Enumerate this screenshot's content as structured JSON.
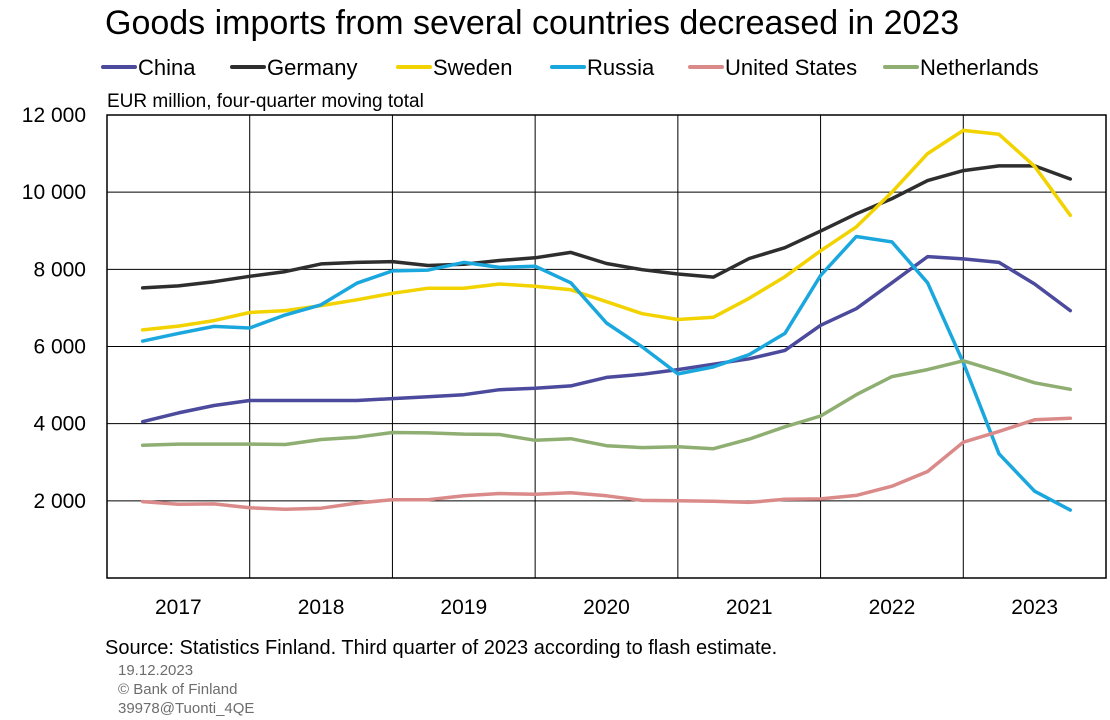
{
  "chart_data": {
    "type": "line",
    "title": "Goods imports from several countries decreased in 2023",
    "unit_label": "EUR million, four-quarter moving total",
    "legend_position": "top",
    "grid": true,
    "xlim": [
      2017,
      2024
    ],
    "ylim": [
      0,
      12000
    ],
    "x_ticks": [
      "2017",
      "2018",
      "2019",
      "2020",
      "2021",
      "2022",
      "2023"
    ],
    "y_ticks": [
      {
        "value": 2000,
        "label": "2 000"
      },
      {
        "value": 4000,
        "label": "4 000"
      },
      {
        "value": 6000,
        "label": "6 000"
      },
      {
        "value": 8000,
        "label": "8 000"
      },
      {
        "value": 10000,
        "label": "10 000"
      },
      {
        "value": 12000,
        "label": "12 000"
      }
    ],
    "x": [
      "2017Q1",
      "2017Q2",
      "2017Q3",
      "2017Q4",
      "2018Q1",
      "2018Q2",
      "2018Q3",
      "2018Q4",
      "2019Q1",
      "2019Q2",
      "2019Q3",
      "2019Q4",
      "2020Q1",
      "2020Q2",
      "2020Q3",
      "2020Q4",
      "2021Q1",
      "2021Q2",
      "2021Q3",
      "2021Q4",
      "2022Q1",
      "2022Q2",
      "2022Q3",
      "2022Q4",
      "2023Q1",
      "2023Q2",
      "2023Q3"
    ],
    "series": [
      {
        "name": "China",
        "color": "#4b4a9c",
        "values": [
          4050,
          4280,
          4470,
          4600,
          4600,
          4600,
          4600,
          4650,
          4700,
          4750,
          4880,
          4920,
          4980,
          5200,
          5280,
          5400,
          5540,
          5680,
          5900,
          6550,
          6980,
          7650,
          8330,
          8270,
          8180,
          7620,
          6930
        ]
      },
      {
        "name": "Germany",
        "color": "#2e2e2e",
        "values": [
          7520,
          7570,
          7680,
          7820,
          7940,
          8140,
          8180,
          8200,
          8100,
          8130,
          8230,
          8300,
          8440,
          8150,
          7990,
          7880,
          7800,
          8280,
          8560,
          8990,
          9440,
          9830,
          10300,
          10560,
          10680,
          10680,
          10340
        ]
      },
      {
        "name": "Sweden",
        "color": "#f2d300",
        "values": [
          6430,
          6530,
          6670,
          6880,
          6930,
          7060,
          7210,
          7380,
          7510,
          7510,
          7620,
          7560,
          7470,
          7160,
          6850,
          6700,
          6760,
          7250,
          7810,
          8480,
          9100,
          10000,
          11000,
          11600,
          11500,
          10670,
          9400
        ]
      },
      {
        "name": "Russia",
        "color": "#1aa7de",
        "values": [
          6140,
          6340,
          6520,
          6480,
          6820,
          7080,
          7640,
          7960,
          7980,
          8180,
          8050,
          8080,
          7650,
          6610,
          5990,
          5290,
          5470,
          5790,
          6340,
          7840,
          8850,
          8710,
          7650,
          5580,
          3220,
          2250,
          1760
        ]
      },
      {
        "name": "United States",
        "color": "#db8a8a",
        "values": [
          1980,
          1910,
          1920,
          1820,
          1780,
          1810,
          1940,
          2030,
          2030,
          2130,
          2190,
          2170,
          2210,
          2130,
          2010,
          2000,
          1990,
          1960,
          2040,
          2050,
          2140,
          2380,
          2760,
          3520,
          3800,
          4100,
          4140
        ]
      },
      {
        "name": "Netherlands",
        "color": "#8fae72",
        "values": [
          3440,
          3470,
          3470,
          3470,
          3460,
          3590,
          3650,
          3770,
          3760,
          3730,
          3720,
          3570,
          3610,
          3430,
          3380,
          3400,
          3350,
          3600,
          3920,
          4200,
          4750,
          5220,
          5400,
          5630,
          5350,
          5060,
          4890
        ]
      }
    ],
    "source": "Source: Statistics Finland. Third quarter of 2023 according to flash estimate.",
    "footer": {
      "date": "19.12.2023",
      "copyright": "© Bank of Finland",
      "code": "39978@Tuonti_4QE"
    }
  }
}
